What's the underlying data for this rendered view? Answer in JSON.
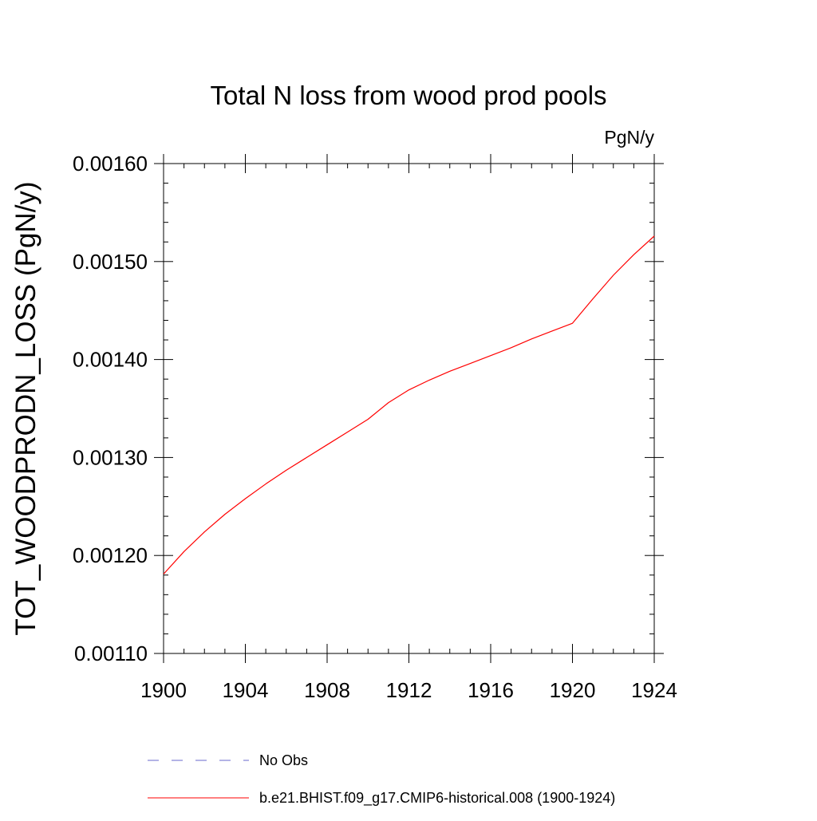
{
  "chart_data": {
    "type": "line",
    "title": "Total N loss from wood prod pools",
    "units_label": "PgN/y",
    "ylabel": "TOT_WOODPRODN_LOSS  (PgN/y)",
    "xlabel": "",
    "xlim": [
      1900,
      1924
    ],
    "ylim": [
      0.0011,
      0.0016
    ],
    "x_ticks": [
      1900,
      1904,
      1908,
      1912,
      1916,
      1920,
      1924
    ],
    "x_tick_labels": [
      "1900",
      "1904",
      "1908",
      "1912",
      "1916",
      "1920",
      "1924"
    ],
    "y_ticks": [
      0.0011,
      0.0012,
      0.0013,
      0.0014,
      0.0015,
      0.0016
    ],
    "y_tick_labels": [
      "0.00110",
      "0.00120",
      "0.00130",
      "0.00140",
      "0.00150",
      "0.00160"
    ],
    "grid": false,
    "legend_position": "bottom",
    "series": [
      {
        "name": "b.e21.BHIST.f09_g17.CMIP6-historical.008 (1900-1924)",
        "color": "#ff0000",
        "style": "solid",
        "x": [
          1900,
          1901,
          1902,
          1903,
          1904,
          1905,
          1906,
          1907,
          1908,
          1909,
          1910,
          1911,
          1912,
          1913,
          1914,
          1915,
          1916,
          1917,
          1918,
          1919,
          1920,
          1921,
          1922,
          1923,
          1924
        ],
        "values": [
          0.001181,
          0.001204,
          0.001224,
          0.001242,
          0.001258,
          0.001273,
          0.001287,
          0.0013,
          0.001313,
          0.001326,
          0.001339,
          0.001356,
          0.001369,
          0.001379,
          0.001388,
          0.001396,
          0.001404,
          0.001412,
          0.001421,
          0.001429,
          0.001437,
          0.001462,
          0.001486,
          0.001507,
          0.001526
        ]
      }
    ],
    "legend": [
      {
        "label": "No Obs",
        "color": "#6a6acd",
        "style": "dashed"
      },
      {
        "label": "b.e21.BHIST.f09_g17.CMIP6-historical.008 (1900-1924)",
        "color": "#ff0000",
        "style": "solid"
      }
    ]
  }
}
